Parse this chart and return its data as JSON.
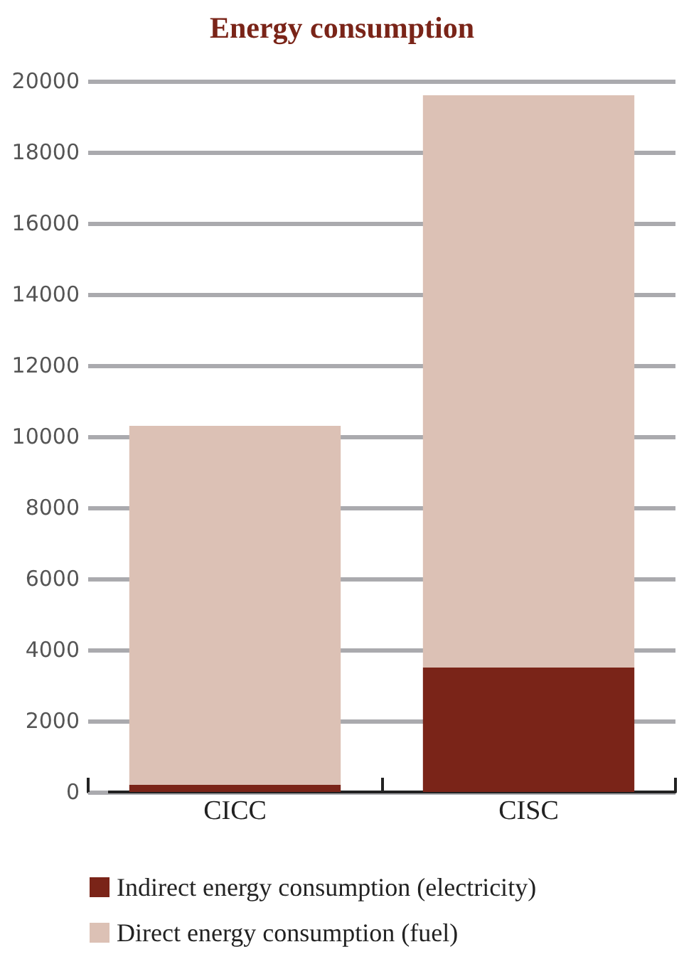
{
  "chart_data": {
    "type": "bar",
    "title": "Energy consumption",
    "categories": [
      "CICC",
      "CISC"
    ],
    "stacked": true,
    "series": [
      {
        "name": "Indirect energy consumption (electricity)",
        "color": "#7a2418",
        "values": [
          200,
          3500
        ]
      },
      {
        "name": "Direct energy consumption (fuel)",
        "color": "#dcc1b5",
        "values": [
          10100,
          16100
        ]
      }
    ],
    "ylim": [
      0,
      20000
    ],
    "yticks": [
      0,
      2000,
      4000,
      6000,
      8000,
      10000,
      12000,
      14000,
      16000,
      18000,
      20000
    ],
    "grid": "y",
    "legend": "bottom"
  }
}
